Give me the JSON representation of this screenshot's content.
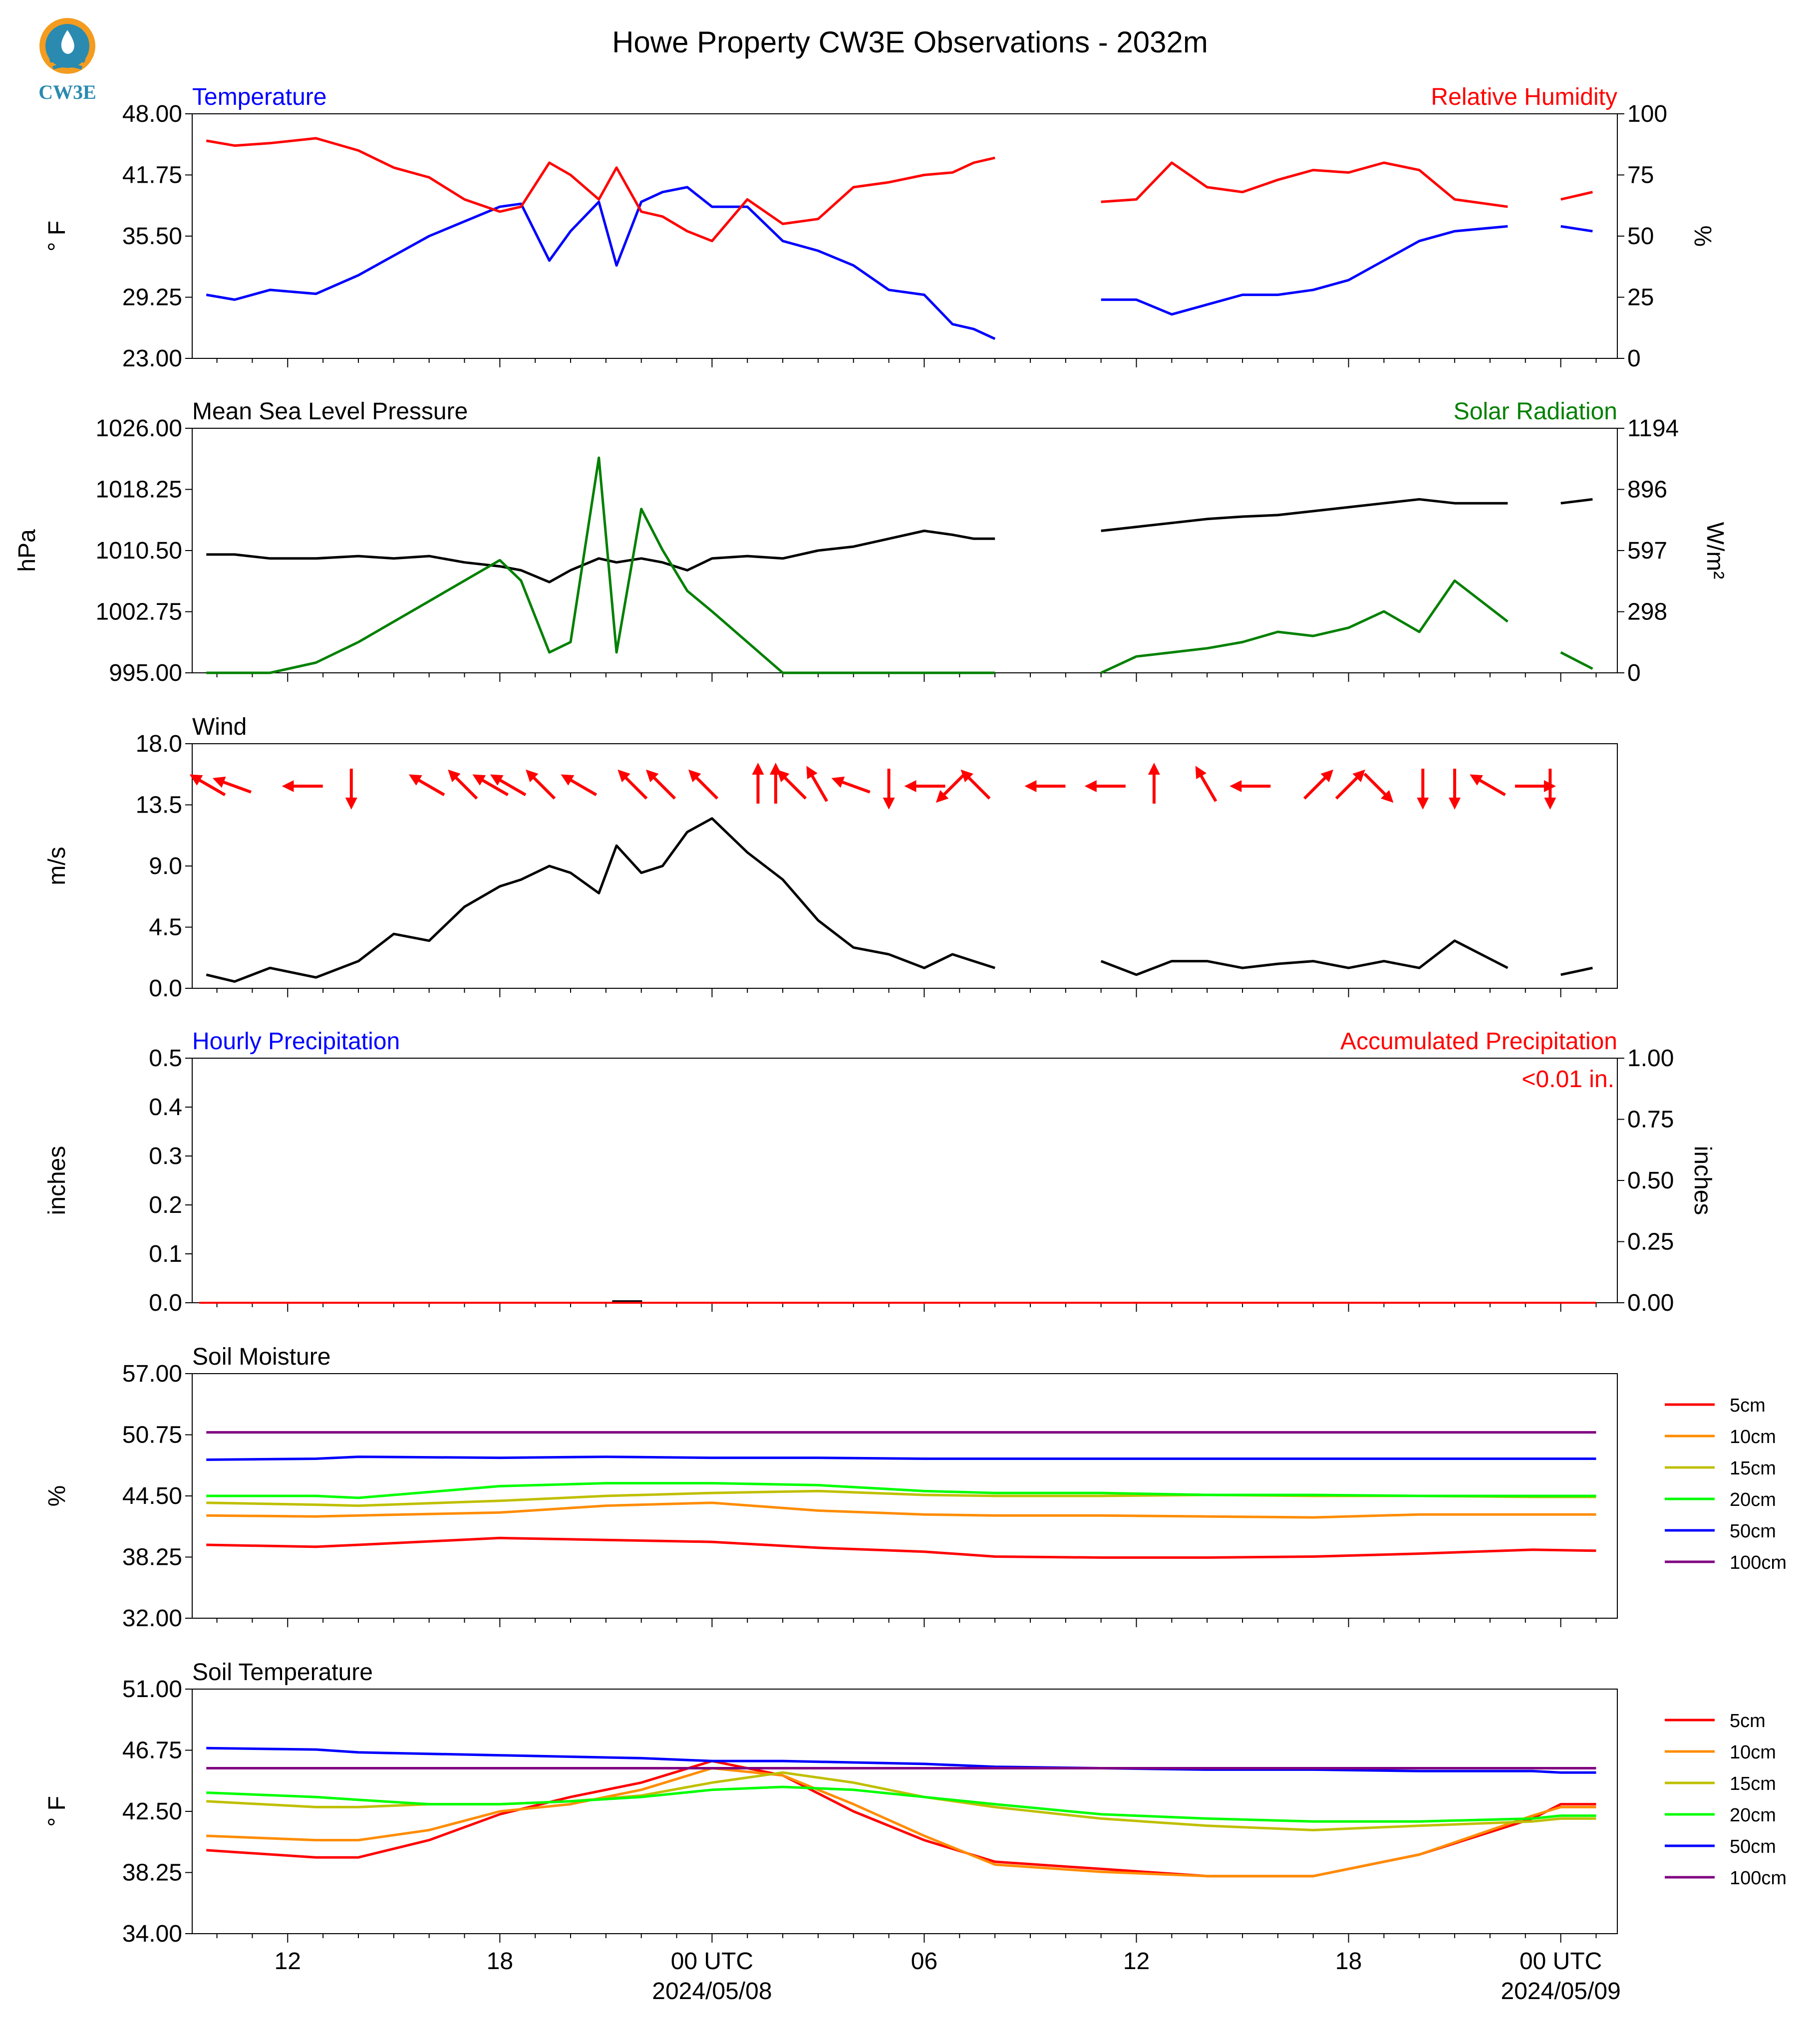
{
  "title": "Howe Property CW3E Observations - 2032m",
  "logo_text": "CW3E",
  "colors": {
    "red": "#ff0000",
    "blue": "#0000ff",
    "green": "#008000",
    "black": "#000000",
    "orange": "#ff8c00",
    "olive": "#bfbf00",
    "lime": "#00ff00",
    "purple": "#800080",
    "logo": "#2a8ab0",
    "logo_orange": "#f39c1f"
  },
  "x_axis": {
    "tick_labels": [
      "12",
      "18",
      "00 UTC",
      "06",
      "12",
      "18",
      "00 UTC"
    ],
    "date_labels": [
      "2024/05/08",
      "2024/05/09"
    ]
  },
  "chart_data": [
    {
      "type": "line",
      "title_left": "Temperature",
      "title_right": "Relative Humidity",
      "ylabel_left": "° F",
      "ylabel_right": "%",
      "y_left_ticks": [
        "48.00",
        "41.75",
        "35.50",
        "29.25",
        "23.00"
      ],
      "y_right_ticks": [
        "100",
        "75",
        "50",
        "25",
        "0"
      ],
      "ylim_left": [
        23,
        48
      ],
      "ylim_right": [
        0,
        100
      ],
      "x_hours": [
        9.7,
        10.5,
        11.5,
        12.8,
        14.0,
        15.0,
        16.0,
        17.0,
        18.0,
        18.6,
        19.4,
        20.0,
        20.8,
        21.3,
        22.0,
        22.6,
        23.3,
        24.0,
        25.0,
        26.0,
        27.0,
        28.0,
        29.0,
        30.0,
        30.8,
        31.4,
        32.0,
        33.5,
        35.0,
        36.0,
        37.0,
        38.0,
        39.0,
        40.0,
        41.0,
        42.0,
        43.0,
        44.0,
        45.0,
        46.5,
        47.2,
        48.0,
        48.9
      ],
      "series": [
        {
          "name": "Temperature",
          "axis": "left",
          "color": "#0000ff",
          "values": [
            29.5,
            29.0,
            30.0,
            29.6,
            31.5,
            33.5,
            35.5,
            37.0,
            38.5,
            38.8,
            33.0,
            36.0,
            39.0,
            32.5,
            39.0,
            40.0,
            40.5,
            38.5,
            38.5,
            35.0,
            34.0,
            32.5,
            30.0,
            29.5,
            26.5,
            26.0,
            25.0,
            null,
            29.0,
            29.0,
            27.5,
            28.5,
            29.5,
            29.5,
            30.0,
            31.0,
            33.0,
            35.0,
            36.0,
            36.5,
            null,
            36.5,
            36.0
          ]
        },
        {
          "name": "Relative Humidity",
          "axis": "right",
          "color": "#ff0000",
          "values": [
            89,
            87,
            88,
            90,
            85,
            78,
            74,
            65,
            60,
            62,
            80,
            75,
            65,
            78,
            60,
            58,
            52,
            48,
            65,
            55,
            57,
            70,
            72,
            75,
            76,
            80,
            82,
            null,
            64,
            65,
            80,
            70,
            68,
            73,
            77,
            76,
            80,
            77,
            65,
            62,
            null,
            65,
            68
          ]
        }
      ]
    },
    {
      "type": "line",
      "title_left": "Mean Sea Level Pressure",
      "title_right": "Solar Radiation",
      "ylabel_left": "hPa",
      "ylabel_right": "W/m²",
      "y_left_ticks": [
        "1026.00",
        "1018.25",
        "1010.50",
        "1002.75",
        "995.00"
      ],
      "y_right_ticks": [
        "1194",
        "896",
        "597",
        "298",
        "0"
      ],
      "ylim_left": [
        995,
        1026
      ],
      "ylim_right": [
        0,
        1194
      ],
      "x_hours": [
        9.7,
        10.5,
        11.5,
        12.8,
        14.0,
        15.0,
        16.0,
        17.0,
        18.0,
        18.6,
        19.4,
        20.0,
        20.8,
        21.3,
        22.0,
        22.6,
        23.3,
        24.0,
        25.0,
        26.0,
        27.0,
        28.0,
        29.0,
        30.0,
        30.8,
        31.4,
        32.0,
        33.5,
        35.0,
        36.0,
        37.0,
        38.0,
        39.0,
        40.0,
        41.0,
        42.0,
        43.0,
        44.0,
        45.0,
        46.5,
        47.2,
        48.0,
        48.9
      ],
      "series": [
        {
          "name": "Mean Sea Level Pressure",
          "axis": "left",
          "color": "#000000",
          "values": [
            1010.0,
            1010.0,
            1009.5,
            1009.5,
            1009.8,
            1009.5,
            1009.8,
            1009.0,
            1008.5,
            1008.0,
            1006.5,
            1008.0,
            1009.5,
            1009.0,
            1009.5,
            1009.0,
            1008.0,
            1009.5,
            1009.8,
            1009.5,
            1010.5,
            1011.0,
            1012.0,
            1013.0,
            1012.5,
            1012.0,
            1012.0,
            null,
            1013.0,
            1013.5,
            1014.0,
            1014.5,
            1014.8,
            1015.0,
            1015.5,
            1016.0,
            1016.5,
            1017.0,
            1016.5,
            1016.5,
            null,
            1016.5,
            1017.0
          ]
        },
        {
          "name": "Solar Radiation",
          "axis": "right",
          "color": "#008000",
          "values": [
            0,
            0,
            0,
            50,
            150,
            250,
            350,
            450,
            550,
            450,
            100,
            150,
            1050,
            100,
            800,
            600,
            400,
            300,
            150,
            0,
            0,
            0,
            0,
            0,
            0,
            0,
            0,
            null,
            0,
            80,
            100,
            120,
            150,
            200,
            180,
            220,
            300,
            200,
            450,
            250,
            null,
            100,
            20
          ]
        }
      ]
    },
    {
      "type": "line",
      "title_left": "Wind",
      "ylabel_left": "m/s",
      "y_left_ticks": [
        "18.0",
        "13.5",
        "9.0",
        "4.5",
        "0.0"
      ],
      "ylim_left": [
        0,
        18
      ],
      "x_hours": [
        9.7,
        10.5,
        11.5,
        12.8,
        14.0,
        15.0,
        16.0,
        17.0,
        18.0,
        18.6,
        19.4,
        20.0,
        20.8,
        21.3,
        22.0,
        22.6,
        23.3,
        24.0,
        25.0,
        26.0,
        27.0,
        28.0,
        29.0,
        30.0,
        30.8,
        31.4,
        32.0,
        33.5,
        35.0,
        36.0,
        37.0,
        38.0,
        39.0,
        40.0,
        41.0,
        42.0,
        43.0,
        44.0,
        45.0,
        46.5,
        47.2,
        48.0,
        48.9
      ],
      "series": [
        {
          "name": "Wind",
          "axis": "left",
          "color": "#000000",
          "values": [
            1.0,
            0.5,
            1.5,
            0.8,
            2.0,
            4.0,
            3.5,
            6.0,
            7.5,
            8.0,
            9.0,
            8.5,
            7.0,
            10.5,
            8.5,
            9.0,
            11.5,
            12.5,
            10.0,
            8.0,
            5.0,
            3.0,
            2.5,
            1.5,
            2.5,
            2.0,
            1.5,
            null,
            2.0,
            1.0,
            2.0,
            2.0,
            1.5,
            1.8,
            2.0,
            1.5,
            2.0,
            1.5,
            3.5,
            1.5,
            null,
            1.0,
            1.5
          ]
        },
        {
          "name": "Wind barbs",
          "kind": "arrows",
          "color": "#ff0000",
          "x": [
            9.8,
            10.5,
            12.5,
            13.8,
            16.0,
            17.0,
            17.8,
            18.3,
            19.2,
            20.3,
            21.8,
            22.6,
            23.8,
            25.3,
            25.8,
            26.3,
            27.0,
            28.0,
            29.0,
            30.1,
            30.8,
            31.5,
            33.5,
            35.2,
            36.5,
            38.0,
            39.3,
            41.1,
            42.0,
            42.8,
            44.1,
            45.0,
            46.0,
            47.2,
            47.7
          ],
          "dir_deg": [
            300,
            290,
            270,
            180,
            300,
            315,
            300,
            300,
            315,
            300,
            315,
            315,
            315,
            0,
            0,
            315,
            330,
            290,
            180,
            270,
            225,
            315,
            270,
            270,
            0,
            330,
            270,
            45,
            45,
            135,
            180,
            180,
            300,
            90,
            180
          ]
        }
      ]
    },
    {
      "type": "bar",
      "title_left": "Hourly Precipitation",
      "title_right": "Accumulated Precipitation",
      "annotation": "<0.01 in.",
      "ylabel_left": "inches",
      "ylabel_right": "inches",
      "y_left_ticks": [
        "0.5",
        "0.4",
        "0.3",
        "0.2",
        "0.1",
        "0.0"
      ],
      "y_right_ticks": [
        "1.00",
        "0.75",
        "0.50",
        "0.25",
        "0.00"
      ],
      "ylim_left": [
        0,
        0.5
      ],
      "ylim_right": [
        0,
        1
      ],
      "series": [
        {
          "name": "Hourly Precipitation",
          "axis": "left",
          "color": "#000000",
          "x": [
            21.6
          ],
          "values": [
            0.001
          ]
        },
        {
          "name": "Accumulated Precipitation",
          "axis": "right",
          "color": "#ff0000",
          "x": [
            9.5,
            49.0
          ],
          "values": [
            0.0,
            0.0
          ]
        }
      ]
    },
    {
      "type": "line",
      "title_left": "Soil Moisture",
      "ylabel_left": "%",
      "y_left_ticks": [
        "57.00",
        "50.75",
        "44.50",
        "38.25",
        "32.00"
      ],
      "ylim_left": [
        32,
        57
      ],
      "legend": [
        "5cm",
        "10cm",
        "15cm",
        "20cm",
        "50cm",
        "100cm"
      ],
      "x_hours": [
        9.7,
        12.8,
        14.0,
        18.0,
        21.0,
        24.0,
        27.0,
        30.0,
        32.0,
        35.0,
        38.0,
        41.0,
        44.0,
        47.2,
        49.0
      ],
      "series": [
        {
          "name": "5cm",
          "color": "#ff0000",
          "values": [
            39.5,
            39.3,
            39.5,
            40.2,
            40.0,
            39.8,
            39.2,
            38.8,
            38.3,
            38.2,
            38.2,
            38.3,
            38.6,
            39.0,
            38.9
          ]
        },
        {
          "name": "10cm",
          "color": "#ff8c00",
          "values": [
            42.5,
            42.4,
            42.5,
            42.8,
            43.5,
            43.8,
            43.0,
            42.6,
            42.5,
            42.5,
            42.4,
            42.3,
            42.6,
            42.6,
            42.6
          ]
        },
        {
          "name": "15cm",
          "color": "#bfbf00",
          "values": [
            43.8,
            43.6,
            43.5,
            44.0,
            44.5,
            44.8,
            45.0,
            44.6,
            44.5,
            44.5,
            44.6,
            44.5,
            44.5,
            44.4,
            44.4
          ]
        },
        {
          "name": "20cm",
          "color": "#00ff00",
          "values": [
            44.5,
            44.5,
            44.3,
            45.5,
            45.8,
            45.8,
            45.6,
            45.0,
            44.8,
            44.8,
            44.6,
            44.6,
            44.5,
            44.5,
            44.5
          ]
        },
        {
          "name": "50cm",
          "color": "#0000ff",
          "values": [
            48.2,
            48.3,
            48.5,
            48.4,
            48.5,
            48.4,
            48.4,
            48.3,
            48.3,
            48.3,
            48.3,
            48.3,
            48.3,
            48.3,
            48.3
          ]
        },
        {
          "name": "100cm",
          "color": "#800080",
          "values": [
            51.0,
            51.0,
            51.0,
            51.0,
            51.0,
            51.0,
            51.0,
            51.0,
            51.0,
            51.0,
            51.0,
            51.0,
            51.0,
            51.0,
            51.0
          ]
        }
      ]
    },
    {
      "type": "line",
      "title_left": "Soil Temperature",
      "ylabel_left": "° F",
      "y_left_ticks": [
        "51.00",
        "46.75",
        "42.50",
        "38.25",
        "34.00"
      ],
      "ylim_left": [
        34,
        51
      ],
      "legend": [
        "5cm",
        "10cm",
        "15cm",
        "20cm",
        "50cm",
        "100cm"
      ],
      "x_hours": [
        9.7,
        12.8,
        14.0,
        16.0,
        18.0,
        20.0,
        22.0,
        24.0,
        26.0,
        28.0,
        30.0,
        32.0,
        35.0,
        38.0,
        41.0,
        44.0,
        47.2,
        48.0,
        49.0
      ],
      "series": [
        {
          "name": "5cm",
          "color": "#ff0000",
          "values": [
            39.8,
            39.3,
            39.3,
            40.5,
            42.3,
            43.5,
            44.5,
            46.0,
            45.0,
            42.5,
            40.5,
            39.0,
            38.5,
            38.0,
            38.0,
            39.5,
            42.0,
            43.0,
            43.0
          ]
        },
        {
          "name": "10cm",
          "color": "#ff8c00",
          "values": [
            40.8,
            40.5,
            40.5,
            41.2,
            42.5,
            43.0,
            44.0,
            45.5,
            45.0,
            43.0,
            40.8,
            38.8,
            38.3,
            38.0,
            38.0,
            39.5,
            42.2,
            42.8,
            42.8
          ]
        },
        {
          "name": "15cm",
          "color": "#bfbf00",
          "values": [
            43.2,
            42.8,
            42.8,
            43.0,
            43.0,
            43.2,
            43.6,
            44.5,
            45.2,
            44.5,
            43.5,
            42.8,
            42.0,
            41.5,
            41.2,
            41.5,
            41.8,
            42.0,
            42.0
          ]
        },
        {
          "name": "20cm",
          "color": "#00ff00",
          "values": [
            43.8,
            43.5,
            43.3,
            43.0,
            43.0,
            43.2,
            43.5,
            44.0,
            44.2,
            44.0,
            43.5,
            43.0,
            42.3,
            42.0,
            41.8,
            41.8,
            42.0,
            42.2,
            42.2
          ]
        },
        {
          "name": "50cm",
          "color": "#0000ff",
          "values": [
            46.9,
            46.8,
            46.6,
            46.5,
            46.4,
            46.3,
            46.2,
            46.0,
            46.0,
            45.9,
            45.8,
            45.6,
            45.5,
            45.4,
            45.4,
            45.3,
            45.3,
            45.2,
            45.2
          ]
        },
        {
          "name": "100cm",
          "color": "#800080",
          "values": [
            45.5,
            45.5,
            45.5,
            45.5,
            45.5,
            45.5,
            45.5,
            45.5,
            45.5,
            45.5,
            45.5,
            45.5,
            45.5,
            45.5,
            45.5,
            45.5,
            45.5,
            45.5,
            45.5
          ]
        }
      ]
    }
  ]
}
